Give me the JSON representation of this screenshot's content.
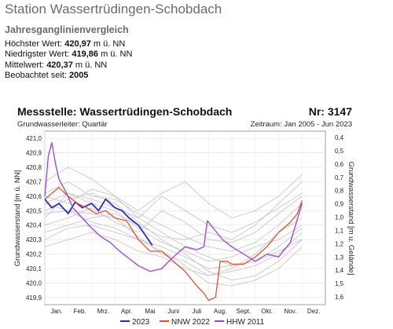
{
  "header": {
    "station_title": "Station Wassertrüdingen-Schobdach",
    "section_title": "Jahresganglinienvergleich"
  },
  "stats": [
    {
      "label": "Höchster Wert: ",
      "value": "420,97",
      "unit": " m ü. NN"
    },
    {
      "label": "Niedrigster Wert: ",
      "value": "419,86",
      "unit": " m ü. NN"
    },
    {
      "label": "Mittelwert: ",
      "value": "420,37",
      "unit": " m ü. NN"
    },
    {
      "label": "Beobachtet seit: ",
      "value": "2005",
      "unit": ""
    }
  ],
  "chart_data": {
    "type": "line",
    "title": "Messstelle: Wassertrüdingen-Schobdach",
    "number_label": "Nr: 3147",
    "subtitle_left": "Grundwasserleiter: Quartär",
    "subtitle_right": "Zeitraum: Jan 2005 - Jun 2023",
    "ylabel_left": "Grundwasserstand [m ü. NN]",
    "ylabel_right": "Grundwasserstand [m u. Gelände]",
    "ylim": [
      419.85,
      421.05
    ],
    "yticks_left": [
      "421,0",
      "420,9",
      "420,8",
      "420,7",
      "420,6",
      "420,5",
      "420,4",
      "420,3",
      "420,2",
      "420,1",
      "420,0",
      "419,9"
    ],
    "yticks_right": [
      "0,4",
      "0,5",
      "0,6",
      "0,7",
      "0,8",
      "0,9",
      "1,0",
      "1,1",
      "1,2",
      "1,3",
      "1,4",
      "1,5",
      "1,6"
    ],
    "x_months": [
      "Jan.",
      "Feb.",
      "Mrz.",
      "Apr.",
      "Mai",
      "Juni",
      "Juli",
      "Aug.",
      "Sept.",
      "Okt.",
      "Nov.",
      "Dez."
    ],
    "grid": true,
    "legend_position": "bottom-center",
    "colors": {
      "2023": "#2a2ad0",
      "NNW 2022": "#e05030",
      "HHW 2011": "#9b40e0",
      "other": "#c8c8c8"
    },
    "series": [
      {
        "name": "2023",
        "color": "#2a2ad0",
        "x": [
          1,
          1.3,
          1.6,
          2,
          2.3,
          2.6,
          3,
          3.3,
          3.6,
          4,
          4.3,
          4.6,
          5,
          5.3,
          5.6
        ],
        "y": [
          420.58,
          420.52,
          420.55,
          420.48,
          420.56,
          420.52,
          420.55,
          420.5,
          420.58,
          420.52,
          420.5,
          420.45,
          420.4,
          420.33,
          420.26
        ]
      },
      {
        "name": "NNW 2022",
        "color": "#e05030",
        "x": [
          1,
          1.3,
          1.6,
          2,
          2.4,
          2.8,
          3.2,
          3.6,
          4,
          4.5,
          5,
          5.5,
          6,
          6.5,
          7,
          7.5,
          7.8,
          8,
          8.3,
          8.5,
          8.8,
          9,
          9.5,
          10,
          10.5,
          11,
          11.5,
          11.8,
          12
        ],
        "y": [
          420.58,
          420.62,
          420.66,
          420.6,
          420.55,
          420.52,
          420.48,
          420.5,
          420.45,
          420.43,
          420.3,
          420.22,
          420.22,
          420.15,
          420.08,
          419.98,
          419.93,
          419.88,
          419.9,
          420.15,
          420.15,
          420.13,
          420.13,
          420.18,
          420.25,
          420.35,
          420.42,
          420.48,
          420.57
        ]
      },
      {
        "name": "HHW 2011",
        "color": "#9b40e0",
        "x": [
          1,
          1.15,
          1.3,
          1.45,
          1.6,
          1.9,
          2.2,
          2.6,
          3,
          3.4,
          3.8,
          4.2,
          4.6,
          5,
          5.5,
          6,
          6.5,
          7,
          7.5,
          7.8,
          7.95,
          8.2,
          8.6,
          9,
          9.5,
          10,
          10.5,
          11,
          11.5,
          12
        ],
        "y": [
          420.6,
          420.88,
          420.97,
          420.83,
          420.72,
          420.63,
          420.52,
          420.45,
          420.38,
          420.32,
          420.28,
          420.22,
          420.17,
          420.12,
          420.08,
          420.1,
          420.18,
          420.25,
          420.23,
          420.25,
          420.43,
          420.38,
          420.3,
          420.25,
          420.2,
          420.15,
          420.2,
          420.18,
          420.28,
          420.55
        ]
      },
      {
        "name": "",
        "color": "#c8c8c8",
        "x": [
          1,
          2,
          3,
          4,
          5,
          6,
          7,
          8,
          9,
          10,
          11,
          12
        ],
        "y": [
          420.55,
          420.5,
          420.48,
          420.45,
          420.32,
          420.2,
          420.15,
          420.05,
          420.1,
          420.2,
          420.35,
          420.45
        ]
      },
      {
        "name": "",
        "color": "#c8c8c8",
        "x": [
          1,
          2,
          3,
          4,
          5,
          6,
          7,
          8,
          9,
          10,
          11,
          12
        ],
        "y": [
          420.45,
          420.62,
          420.55,
          420.5,
          420.38,
          420.28,
          420.22,
          420.15,
          420.18,
          420.25,
          420.3,
          420.4
        ]
      },
      {
        "name": "",
        "color": "#c8c8c8",
        "x": [
          1,
          2,
          3,
          4,
          5,
          6,
          7,
          8,
          9,
          10,
          11,
          12
        ],
        "y": [
          420.3,
          420.38,
          420.4,
          420.35,
          420.3,
          420.25,
          420.18,
          420.1,
          420.12,
          420.15,
          420.22,
          420.3
        ]
      },
      {
        "name": "",
        "color": "#c8c8c8",
        "x": [
          1,
          2,
          3,
          4,
          5,
          6,
          7,
          8,
          9,
          10,
          11,
          12
        ],
        "y": [
          420.62,
          420.7,
          420.6,
          420.58,
          420.48,
          420.4,
          420.32,
          420.25,
          420.22,
          420.28,
          420.4,
          420.55
        ]
      },
      {
        "name": "",
        "color": "#c8c8c8",
        "x": [
          1,
          2,
          3,
          4,
          5,
          6,
          7,
          8,
          9,
          10,
          11,
          12
        ],
        "y": [
          420.4,
          420.45,
          420.52,
          420.42,
          420.35,
          420.5,
          420.42,
          420.3,
          420.28,
          420.35,
          420.48,
          420.6
        ]
      },
      {
        "name": "",
        "color": "#c8c8c8",
        "x": [
          1,
          2,
          3,
          4,
          5,
          6,
          7,
          8,
          9,
          10,
          11,
          12
        ],
        "y": [
          420.7,
          420.8,
          420.72,
          420.6,
          420.45,
          420.35,
          420.25,
          420.18,
          420.12,
          420.15,
          420.25,
          420.38
        ]
      },
      {
        "name": "",
        "color": "#c8c8c8",
        "x": [
          1,
          2,
          3,
          4,
          5,
          6,
          7,
          8,
          9,
          10,
          11,
          12
        ],
        "y": [
          420.5,
          420.58,
          420.62,
          420.55,
          420.42,
          420.3,
          420.2,
          420.08,
          420.02,
          420.05,
          420.15,
          420.3
        ]
      },
      {
        "name": "",
        "color": "#c8c8c8",
        "x": [
          1,
          2,
          3,
          4,
          5,
          6,
          7,
          8,
          9,
          10,
          11,
          12
        ],
        "y": [
          420.35,
          420.4,
          420.45,
          420.48,
          420.4,
          420.32,
          420.3,
          420.35,
          420.3,
          420.4,
          420.55,
          420.7
        ]
      },
      {
        "name": "",
        "color": "#c8c8c8",
        "x": [
          1,
          2,
          3,
          4,
          5,
          6,
          7,
          8,
          9,
          10,
          11,
          12
        ],
        "y": [
          420.6,
          420.55,
          420.65,
          420.6,
          420.5,
          420.62,
          420.7,
          420.55,
          420.45,
          420.5,
          420.6,
          420.75
        ]
      },
      {
        "name": "",
        "color": "#c8c8c8",
        "x": [
          1,
          2,
          3,
          4,
          5,
          6,
          7,
          8,
          9,
          10,
          11,
          12
        ],
        "y": [
          420.48,
          420.5,
          420.42,
          420.38,
          420.3,
          420.22,
          420.12,
          420.0,
          419.98,
          420.02,
          420.1,
          420.25
        ]
      },
      {
        "name": "",
        "color": "#c8c8c8",
        "x": [
          1,
          2,
          3,
          4,
          5,
          6,
          7,
          8,
          9,
          10,
          11,
          12
        ],
        "y": [
          420.25,
          420.3,
          420.35,
          420.3,
          420.22,
          420.18,
          420.1,
          420.05,
          420.08,
          420.12,
          420.2,
          420.35
        ]
      },
      {
        "name": "",
        "color": "#c8c8c8",
        "x": [
          1,
          2,
          3,
          4,
          5,
          6,
          7,
          8,
          9,
          10,
          11,
          12
        ],
        "y": [
          420.55,
          420.62,
          420.58,
          420.52,
          420.45,
          420.6,
          420.5,
          420.4,
          420.35,
          420.42,
          420.52,
          420.62
        ]
      }
    ]
  }
}
